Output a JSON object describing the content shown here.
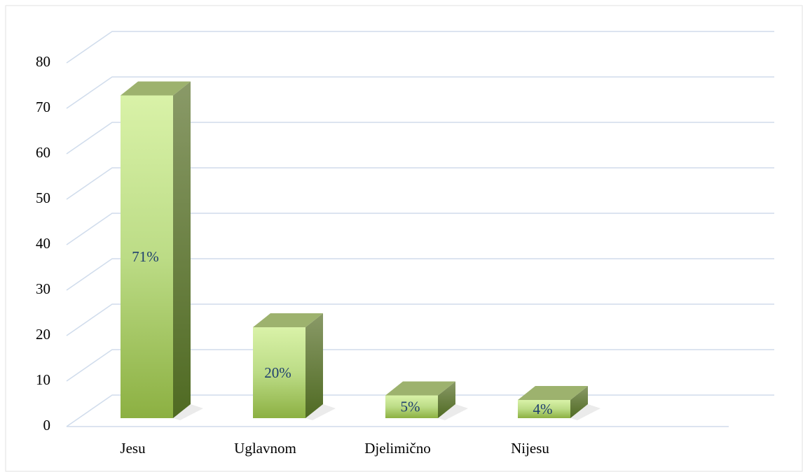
{
  "chart_data": {
    "type": "bar3d",
    "categories": [
      "Jesu",
      "Uglavnom",
      "Djelimično",
      "Nijesu"
    ],
    "values": [
      71,
      20,
      5,
      4
    ],
    "value_labels": [
      "71%",
      "20%",
      "5%",
      "4%"
    ],
    "color": "#9cc45a",
    "ylim": [
      0,
      80
    ],
    "yticks": [
      0,
      10,
      20,
      30,
      40,
      50,
      60,
      70,
      80
    ],
    "grid": true
  }
}
